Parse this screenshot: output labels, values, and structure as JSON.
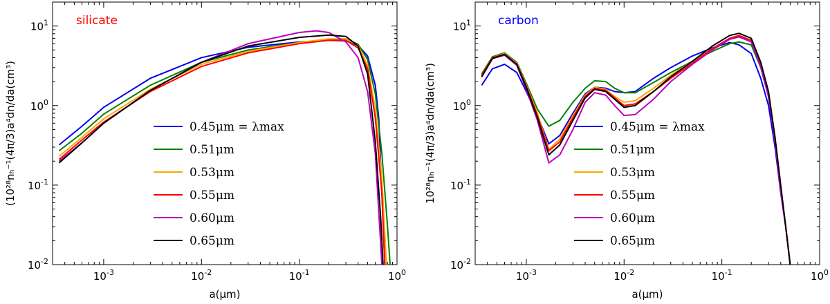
{
  "chart_data": [
    {
      "type": "line",
      "title": "silicate",
      "title_color": "#ff0000",
      "xlabel": "a(μm)",
      "ylabel": "(10²⁸nₕ⁻¹(4π/3)a⁴dn/da(cm³)",
      "xscale": "log",
      "yscale": "log",
      "xlim": [
        0.0003,
        1.0
      ],
      "ylim": [
        0.01,
        20
      ],
      "x_ticks": [
        {
          "value": 0.001,
          "base": "10",
          "exp": "-3"
        },
        {
          "value": 0.01,
          "base": "10",
          "exp": "-2"
        },
        {
          "value": 0.1,
          "base": "10",
          "exp": "-1"
        },
        {
          "value": 1.0,
          "base": "10",
          "exp": "0"
        }
      ],
      "y_ticks": [
        {
          "value": 0.01,
          "base": "10",
          "exp": "-2"
        },
        {
          "value": 0.1,
          "base": "10",
          "exp": "-1"
        },
        {
          "value": 1.0,
          "base": "10",
          "exp": "0"
        },
        {
          "value": 10.0,
          "base": "10",
          "exp": "1"
        }
      ],
      "legend_position": "center-right",
      "series": [
        {
          "name": "0.45μm = λmax",
          "color": "#0000ee",
          "x": [
            0.00035,
            0.0006,
            0.001,
            0.003,
            0.01,
            0.03,
            0.1,
            0.2,
            0.3,
            0.4,
            0.5,
            0.6,
            0.65,
            0.7,
            0.75
          ],
          "y": [
            0.32,
            0.55,
            0.95,
            2.2,
            4.0,
            5.4,
            6.3,
            6.6,
            6.5,
            5.7,
            4.2,
            1.8,
            0.7,
            0.08,
            0.01
          ]
        },
        {
          "name": "0.51μm",
          "color": "#008000",
          "x": [
            0.00035,
            0.0006,
            0.001,
            0.003,
            0.01,
            0.03,
            0.1,
            0.2,
            0.3,
            0.4,
            0.5,
            0.6,
            0.7,
            0.8,
            0.85
          ],
          "y": [
            0.27,
            0.45,
            0.78,
            1.8,
            3.5,
            5.0,
            6.2,
            6.8,
            6.9,
            5.9,
            3.8,
            1.4,
            0.25,
            0.03,
            0.01
          ]
        },
        {
          "name": "0.53μm",
          "color": "#ffa500",
          "x": [
            0.00035,
            0.0006,
            0.001,
            0.003,
            0.01,
            0.03,
            0.1,
            0.2,
            0.3,
            0.4,
            0.5,
            0.6,
            0.7,
            0.78
          ],
          "y": [
            0.23,
            0.4,
            0.68,
            1.6,
            3.3,
            4.8,
            6.2,
            6.9,
            6.9,
            5.7,
            3.2,
            0.9,
            0.12,
            0.01
          ]
        },
        {
          "name": "0.55μm",
          "color": "#ff0000",
          "x": [
            0.00035,
            0.0006,
            0.001,
            0.003,
            0.01,
            0.03,
            0.1,
            0.2,
            0.3,
            0.4,
            0.5,
            0.6,
            0.7,
            0.75
          ],
          "y": [
            0.21,
            0.37,
            0.62,
            1.5,
            3.1,
            4.6,
            6.0,
            6.6,
            6.6,
            5.3,
            2.9,
            0.7,
            0.08,
            0.01
          ]
        },
        {
          "name": "0.60μm",
          "color": "#bb00bb",
          "x": [
            0.00035,
            0.0006,
            0.001,
            0.003,
            0.01,
            0.03,
            0.1,
            0.15,
            0.2,
            0.3,
            0.4,
            0.5,
            0.6,
            0.7
          ],
          "y": [
            0.2,
            0.34,
            0.6,
            1.55,
            3.5,
            6.0,
            8.3,
            8.7,
            8.3,
            6.3,
            4.0,
            1.5,
            0.25,
            0.01
          ]
        },
        {
          "name": "0.65μm",
          "color": "#000000",
          "x": [
            0.00035,
            0.0006,
            0.001,
            0.003,
            0.01,
            0.03,
            0.1,
            0.2,
            0.3,
            0.4,
            0.5,
            0.6,
            0.68,
            0.72
          ],
          "y": [
            0.19,
            0.34,
            0.6,
            1.55,
            3.5,
            5.6,
            7.2,
            7.7,
            7.4,
            5.6,
            2.5,
            0.35,
            0.04,
            0.01
          ]
        }
      ]
    },
    {
      "type": "line",
      "title": "carbon",
      "title_color": "#0000ff",
      "xlabel": "a(μm)",
      "ylabel": "10²⁸nₕ⁻¹(4π/3)a⁴dn/da(cm³)",
      "xscale": "log",
      "yscale": "log",
      "xlim": [
        0.0003,
        1.0
      ],
      "ylim": [
        0.01,
        20
      ],
      "x_ticks": [
        {
          "value": 0.001,
          "base": "10",
          "exp": "-3"
        },
        {
          "value": 0.01,
          "base": "10",
          "exp": "-2"
        },
        {
          "value": 0.1,
          "base": "10",
          "exp": "-1"
        },
        {
          "value": 1.0,
          "base": "10",
          "exp": "0"
        }
      ],
      "y_ticks": [
        {
          "value": 0.01,
          "base": "10",
          "exp": "-2"
        },
        {
          "value": 0.1,
          "base": "10",
          "exp": "-1"
        },
        {
          "value": 1.0,
          "base": "10",
          "exp": "0"
        },
        {
          "value": 10.0,
          "base": "10",
          "exp": "1"
        }
      ],
      "legend_position": "center-right",
      "series": [
        {
          "name": "0.45μm = λmax",
          "color": "#0000ee",
          "x": [
            0.00035,
            0.00045,
            0.0006,
            0.0008,
            0.001,
            0.0013,
            0.0017,
            0.0022,
            0.003,
            0.004,
            0.005,
            0.0065,
            0.008,
            0.01,
            0.013,
            0.02,
            0.03,
            0.05,
            0.08,
            0.12,
            0.15,
            0.2,
            0.25,
            0.3,
            0.35,
            0.4,
            0.45,
            0.5
          ],
          "y": [
            1.8,
            2.9,
            3.3,
            2.6,
            1.5,
            0.75,
            0.33,
            0.42,
            0.8,
            1.4,
            1.7,
            1.65,
            1.5,
            1.45,
            1.5,
            2.2,
            3.0,
            4.2,
            5.3,
            6.2,
            5.8,
            4.5,
            2.2,
            1.0,
            0.3,
            0.08,
            0.03,
            0.01
          ]
        },
        {
          "name": "0.51μm",
          "color": "#008000",
          "x": [
            0.00035,
            0.00045,
            0.0006,
            0.0008,
            0.001,
            0.0013,
            0.0017,
            0.0022,
            0.003,
            0.004,
            0.005,
            0.0065,
            0.008,
            0.01,
            0.013,
            0.02,
            0.03,
            0.05,
            0.08,
            0.12,
            0.15,
            0.2,
            0.25,
            0.3,
            0.35,
            0.4,
            0.45,
            0.5
          ],
          "y": [
            2.5,
            4.1,
            4.6,
            3.5,
            1.9,
            0.9,
            0.55,
            0.65,
            1.1,
            1.65,
            2.05,
            2.0,
            1.65,
            1.45,
            1.45,
            1.95,
            2.6,
            3.6,
            4.8,
            6.0,
            6.3,
            5.8,
            3.0,
            1.3,
            0.35,
            0.09,
            0.03,
            0.01
          ]
        },
        {
          "name": "0.53μm",
          "color": "#ffa500",
          "x": [
            0.00035,
            0.00045,
            0.0006,
            0.0008,
            0.001,
            0.0013,
            0.0017,
            0.0022,
            0.003,
            0.004,
            0.005,
            0.0065,
            0.008,
            0.01,
            0.013,
            0.02,
            0.03,
            0.05,
            0.08,
            0.12,
            0.15,
            0.2,
            0.25,
            0.3,
            0.35,
            0.4,
            0.45,
            0.5
          ],
          "y": [
            2.4,
            4.0,
            4.5,
            3.4,
            1.8,
            0.8,
            0.28,
            0.38,
            0.75,
            1.35,
            1.7,
            1.6,
            1.3,
            1.1,
            1.15,
            1.65,
            2.4,
            3.6,
            5.2,
            6.8,
            7.3,
            6.5,
            3.3,
            1.4,
            0.37,
            0.09,
            0.03,
            0.01
          ]
        },
        {
          "name": "0.55μm",
          "color": "#ff0000",
          "x": [
            0.00035,
            0.00045,
            0.0006,
            0.0008,
            0.001,
            0.0013,
            0.0017,
            0.0022,
            0.003,
            0.004,
            0.005,
            0.0065,
            0.008,
            0.01,
            0.013,
            0.02,
            0.03,
            0.05,
            0.08,
            0.12,
            0.15,
            0.2,
            0.25,
            0.3,
            0.35,
            0.4,
            0.45,
            0.5
          ],
          "y": [
            2.4,
            4.0,
            4.4,
            3.3,
            1.75,
            0.75,
            0.27,
            0.35,
            0.7,
            1.3,
            1.65,
            1.55,
            1.25,
            1.0,
            1.05,
            1.5,
            2.2,
            3.4,
            5.2,
            7.0,
            7.6,
            6.6,
            3.3,
            1.4,
            0.37,
            0.09,
            0.03,
            0.01
          ]
        },
        {
          "name": "0.60μm",
          "color": "#bb00bb",
          "x": [
            0.00035,
            0.00045,
            0.0006,
            0.0008,
            0.001,
            0.0013,
            0.0017,
            0.0022,
            0.003,
            0.004,
            0.005,
            0.0065,
            0.008,
            0.01,
            0.013,
            0.02,
            0.03,
            0.05,
            0.08,
            0.12,
            0.15,
            0.2,
            0.25,
            0.3,
            0.35,
            0.4,
            0.45,
            0.5
          ],
          "y": [
            2.3,
            3.9,
            4.3,
            3.2,
            1.6,
            0.65,
            0.19,
            0.24,
            0.5,
            1.1,
            1.45,
            1.35,
            1.0,
            0.75,
            0.77,
            1.2,
            2.0,
            3.3,
            5.0,
            6.8,
            7.3,
            6.3,
            3.1,
            1.3,
            0.35,
            0.08,
            0.03,
            0.01
          ]
        },
        {
          "name": "0.65μm",
          "color": "#000000",
          "x": [
            0.00035,
            0.00045,
            0.0006,
            0.0008,
            0.001,
            0.0013,
            0.0017,
            0.0022,
            0.003,
            0.004,
            0.005,
            0.0065,
            0.008,
            0.01,
            0.013,
            0.02,
            0.03,
            0.05,
            0.08,
            0.12,
            0.15,
            0.2,
            0.25,
            0.3,
            0.35,
            0.4,
            0.45,
            0.5
          ],
          "y": [
            2.3,
            3.9,
            4.4,
            3.3,
            1.7,
            0.7,
            0.24,
            0.32,
            0.65,
            1.25,
            1.6,
            1.5,
            1.2,
            0.95,
            1.0,
            1.5,
            2.3,
            3.6,
            5.6,
            7.6,
            8.1,
            7.0,
            3.5,
            1.5,
            0.4,
            0.1,
            0.03,
            0.01
          ]
        }
      ]
    }
  ]
}
